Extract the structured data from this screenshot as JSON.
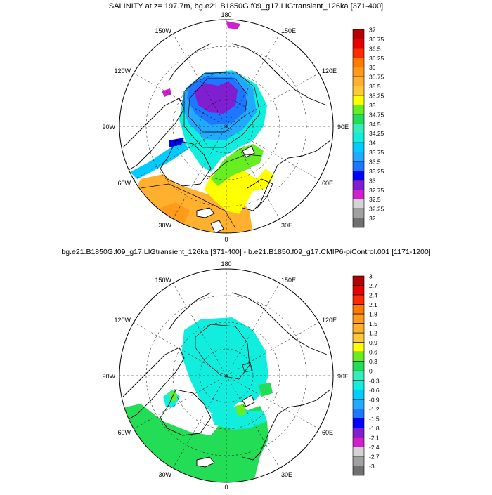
{
  "top_panel": {
    "title": "SALINITY at z= 197.7m, bg.e21.B1850G.f09_g17.LIGtransient_126ka [371-400]",
    "lon_labels": [
      "180",
      "150E",
      "120E",
      "90E",
      "60E",
      "30E",
      "0",
      "30W",
      "60W",
      "90W",
      "120W",
      "150W"
    ],
    "colorbar": {
      "labels": [
        "37",
        "36.75",
        "36.5",
        "36.25",
        "36",
        "35.75",
        "35.5",
        "35.25",
        "35",
        "34.75",
        "34.5",
        "34.25",
        "34",
        "33.75",
        "33.5",
        "33.25",
        "33",
        "32.75",
        "32.5",
        "32.25",
        "32"
      ],
      "colors": [
        "#b40000",
        "#e60000",
        "#ff2a00",
        "#ff7a00",
        "#ff9a1a",
        "#ffb02e",
        "#ffc838",
        "#ffff00",
        "#66ee22",
        "#22dd55",
        "#33eebb",
        "#11eedd",
        "#00ccff",
        "#22aaff",
        "#1e78ff",
        "#0000ff",
        "#7f1fcf",
        "#d11fcf",
        "#d3d3d3",
        "#a0a0a0",
        "#707070"
      ]
    }
  },
  "bottom_panel": {
    "title": "bg.e21.B1850G.f09_g17.LIGtransient_126ka [371-400] - b.e21.B1850.f09_g17.CMIP6-piControl.001 [1171-1200]",
    "lon_labels": [
      "180",
      "150E",
      "120E",
      "90E",
      "60E",
      "30E",
      "0",
      "30W",
      "60W",
      "90W",
      "120W",
      "150W"
    ],
    "colorbar": {
      "labels": [
        "3",
        "2.7",
        "2.4",
        "2.1",
        "1.8",
        "1.5",
        "1.2",
        "0.9",
        "0.6",
        "0.3",
        "0",
        "-0.3",
        "-0.6",
        "-0.9",
        "-1.2",
        "-1.5",
        "-1.8",
        "-2.1",
        "-2.4",
        "-2.7",
        "-3"
      ],
      "colors": [
        "#b40000",
        "#e60000",
        "#ff2a00",
        "#ff7a00",
        "#ff9a1a",
        "#ffb02e",
        "#ffc838",
        "#ffff00",
        "#66ee22",
        "#22dd55",
        "#33eebb",
        "#11eedd",
        "#00ccff",
        "#22aaff",
        "#1e78ff",
        "#0000ff",
        "#7f1fcf",
        "#d11fcf",
        "#d3d3d3",
        "#a0a0a0",
        "#707070"
      ]
    }
  },
  "colors": {
    "land_outline": "#000000",
    "grid": "#000000",
    "background": "#ffffff"
  }
}
